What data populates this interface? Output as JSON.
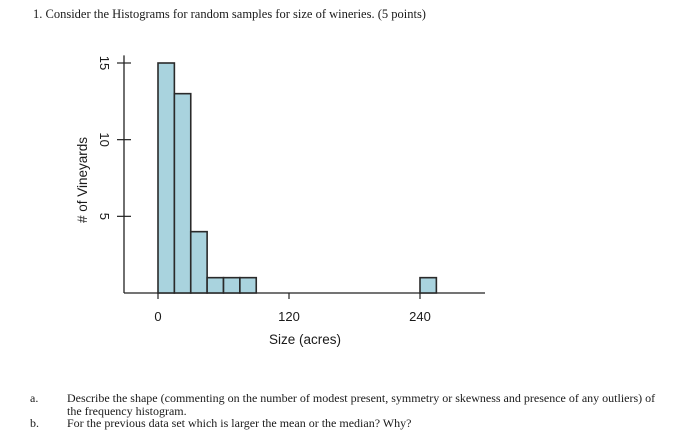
{
  "question": {
    "text": "1. Consider the Histograms for random samples for size of wineries. (5 points)"
  },
  "chart_data": {
    "type": "bar",
    "title": "",
    "xlabel": "Size (acres)",
    "ylabel": "# of Vineyards",
    "x_tick_labels": [
      "0",
      "120",
      "240"
    ],
    "x_tick_values": [
      0,
      120,
      240
    ],
    "y_tick_labels": [
      "5",
      "10",
      "15"
    ],
    "y_tick_values": [
      5,
      10,
      15
    ],
    "ylim": [
      0,
      15.5
    ],
    "xlim": [
      0,
      300
    ],
    "bin_width": 15,
    "bins": [
      {
        "start": 0,
        "end": 15,
        "count": 15
      },
      {
        "start": 15,
        "end": 30,
        "count": 13
      },
      {
        "start": 30,
        "end": 45,
        "count": 4
      },
      {
        "start": 45,
        "end": 60,
        "count": 1
      },
      {
        "start": 60,
        "end": 75,
        "count": 1
      },
      {
        "start": 75,
        "end": 90,
        "count": 1
      },
      {
        "start": 120,
        "end": 135,
        "count": 0
      },
      {
        "start": 240,
        "end": 255,
        "count": 1
      }
    ],
    "bar_color": "#a9d3de",
    "grid": false
  },
  "subquestions": [
    {
      "letter": "a.",
      "text": "Describe the shape (commenting on the number of modest present, symmetry or skewness and presence of any outliers) of the frequency histogram."
    },
    {
      "letter": "b.",
      "text": "For the previous data set which is larger the mean or the median? Why?"
    }
  ]
}
